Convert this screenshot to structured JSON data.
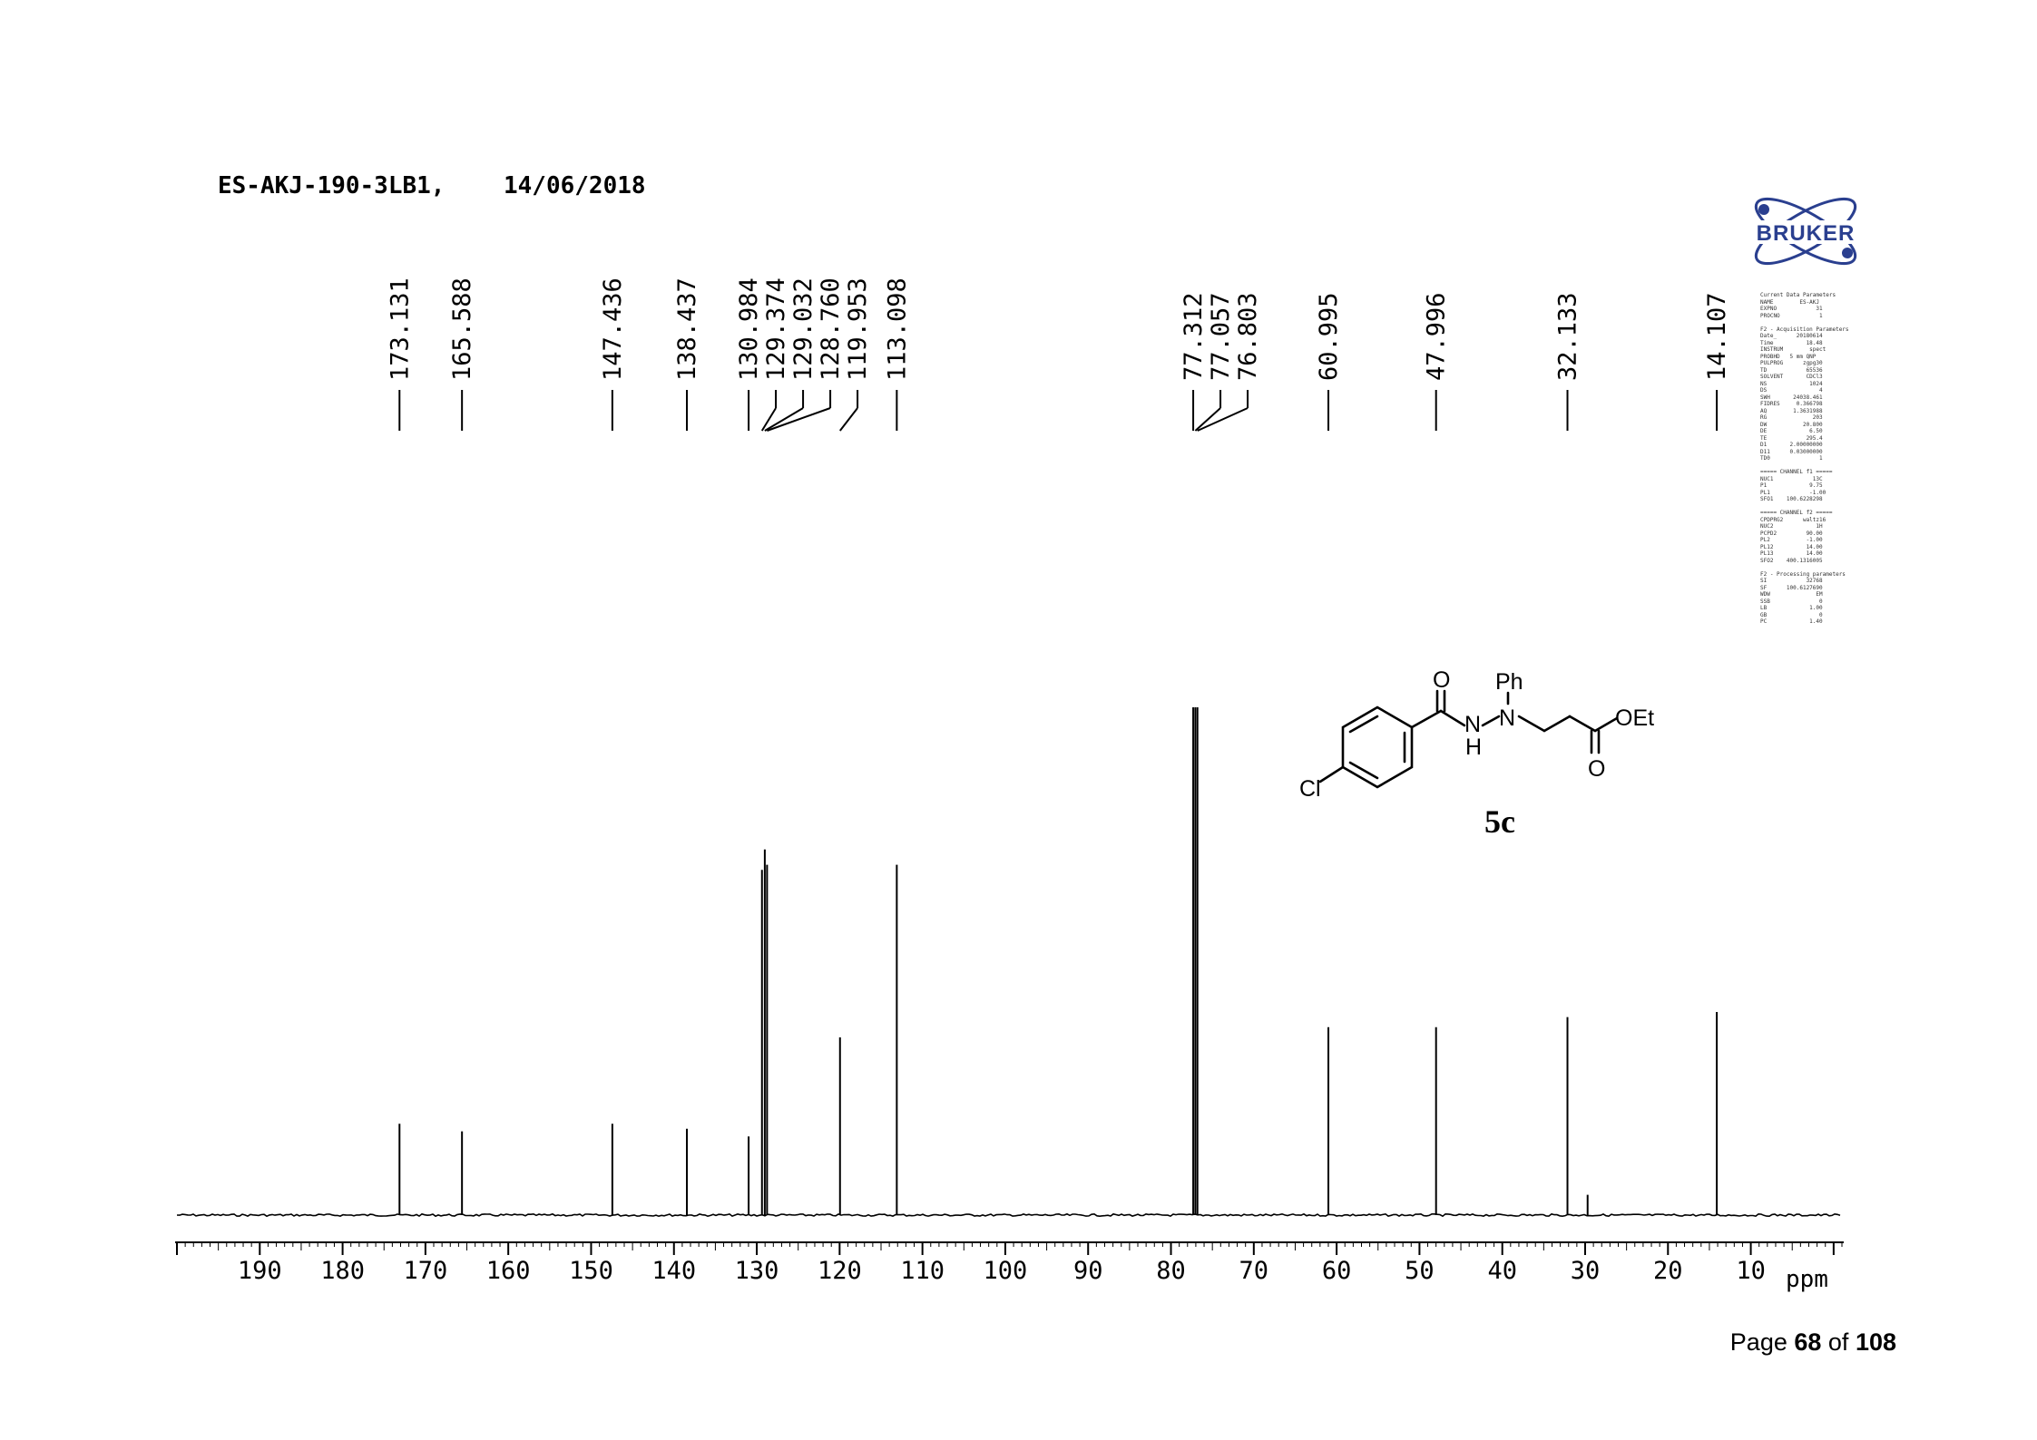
{
  "header": {
    "sample_title": "ES-AKJ-190-3LB1,",
    "date": "14/06/2018"
  },
  "colors": {
    "ink": "#000000",
    "annotation_blue": "#0000cc",
    "logo_blue": "#2a3f8f"
  },
  "logo": {
    "text": "BRUKER",
    "icon": "bruker-atom-logo"
  },
  "params": {
    "lines": [
      "Current Data Parameters",
      "NAME        ES-AKJ",
      "EXPNO            31",
      "PROCNO            1",
      "",
      "F2 - Acquisition Parameters",
      "Date_      20180614",
      "Time          18.48",
      "INSTRUM        spect",
      "PROBHD   5 mm QNP",
      "PULPROG      zgpg30",
      "TD            65536",
      "SOLVENT       CDCl3",
      "NS             1024",
      "DS                4",
      "SWH       24038.461",
      "FIDRES     0.366798",
      "AQ        1.3631988",
      "RG              203",
      "DW           20.800",
      "DE             6.50",
      "TE            295.4",
      "D1       2.00000000",
      "D11      0.03000000",
      "TD0               1",
      "",
      "===== CHANNEL f1 =====",
      "NUC1            13C",
      "P1             9.75",
      "PL1            -1.00",
      "SFO1    100.6228298",
      "",
      "===== CHANNEL f2 =====",
      "CPDPRG2      waltz16",
      "NUC2             1H",
      "PCPD2         90.00",
      "PL2           -1.00",
      "PL12          14.00",
      "PL13          14.00",
      "SFO2    400.1316005",
      "",
      "F2 - Processing parameters",
      "SI            32768",
      "SF      100.6127690",
      "WDW              EM",
      "SSB               0",
      "LB             1.00",
      "GB                0",
      "PC             1.40"
    ]
  },
  "structure": {
    "compound_label": "5c",
    "substituent_cl": "Cl",
    "carbonyl_o": "O",
    "nh_n": "N",
    "nh_h": "H",
    "n2": "N",
    "phenyl": "Ph",
    "ester_oet": "OEt",
    "ester_o": "O"
  },
  "page": {
    "prefix": "Page ",
    "current": "68",
    "of": " of ",
    "total": "108"
  },
  "chart_data": {
    "type": "line",
    "title": "ES-AKJ-190-3LB1,  14/06/2018",
    "xlabel": "ppm",
    "xlim": [
      200,
      -1
    ],
    "x_reversed": true,
    "x_ticks": [
      190,
      180,
      170,
      160,
      150,
      140,
      130,
      120,
      110,
      100,
      90,
      80,
      70,
      60,
      50,
      40,
      30,
      20,
      10
    ],
    "x_tick_labels": [
      "190",
      "180",
      "170",
      "160",
      "150",
      "140",
      "130",
      "120",
      "110",
      "100",
      "90",
      "80",
      "70",
      "60",
      "50",
      "40",
      "30",
      "20",
      "10"
    ],
    "ylim": [
      0,
      1
    ],
    "grid": false,
    "peaks": [
      {
        "ppm": 173.131,
        "label": "173.131",
        "height": 0.18
      },
      {
        "ppm": 165.588,
        "label": "165.588",
        "height": 0.165
      },
      {
        "ppm": 147.436,
        "label": "147.436",
        "height": 0.18
      },
      {
        "ppm": 138.437,
        "label": "138.437",
        "height": 0.17
      },
      {
        "ppm": 130.984,
        "label": "130.984",
        "height": 0.155
      },
      {
        "ppm": 129.374,
        "label": "129.374",
        "height": 0.68
      },
      {
        "ppm": 129.032,
        "label": "129.032",
        "height": 0.72
      },
      {
        "ppm": 128.76,
        "label": "128.760",
        "height": 0.69
      },
      {
        "ppm": 119.953,
        "label": "119.953",
        "height": 0.35
      },
      {
        "ppm": 113.098,
        "label": "113.098",
        "height": 0.69
      },
      {
        "ppm": 77.312,
        "label": "77.312",
        "height": 1.0
      },
      {
        "ppm": 77.057,
        "label": "77.057",
        "height": 1.0
      },
      {
        "ppm": 76.803,
        "label": "76.803",
        "height": 1.0
      },
      {
        "ppm": 60.995,
        "label": "60.995",
        "height": 0.37
      },
      {
        "ppm": 47.996,
        "label": "47.996",
        "height": 0.37
      },
      {
        "ppm": 32.133,
        "label": "32.133",
        "height": 0.39
      },
      {
        "ppm": 29.7,
        "label": "",
        "height": 0.04
      },
      {
        "ppm": 14.107,
        "label": "14.107",
        "height": 0.4
      }
    ],
    "labeled_peak_count": 17
  }
}
